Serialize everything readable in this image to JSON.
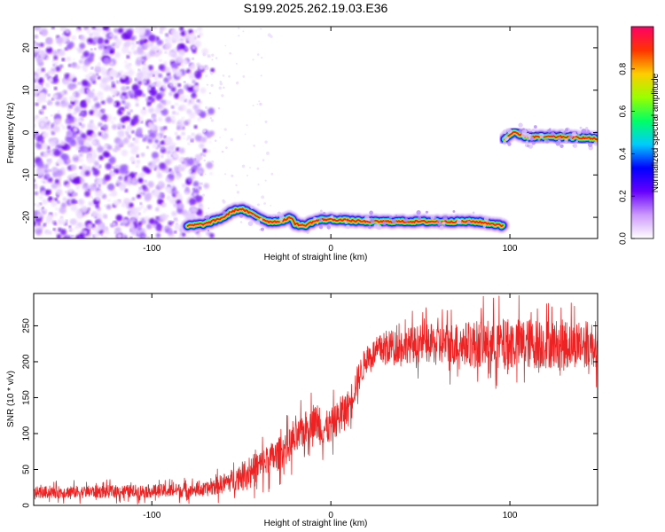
{
  "figure": {
    "title": "S199.2025.262.19.03.E36"
  },
  "chart_data": [
    {
      "type": "heatmap",
      "title": "",
      "xlabel": "Height of straight line (km)",
      "ylabel": "Frequency (Hz)",
      "xlim": [
        -166,
        149
      ],
      "ylim": [
        -25,
        25
      ],
      "x_ticks": [
        "-100",
        "0",
        "100"
      ],
      "x_tick_values": [
        -100,
        0,
        100
      ],
      "y_ticks": [
        "-20",
        "-10",
        "0",
        "10",
        "20"
      ],
      "y_tick_values": [
        -20,
        -10,
        0,
        10,
        20
      ],
      "colorbar": {
        "label": "Normalized spectral amplitude",
        "range": [
          0,
          1
        ],
        "ticks": [
          "0.0",
          "0.2",
          "0.4",
          "0.6",
          "0.8"
        ],
        "tick_values": [
          0,
          0.2,
          0.4,
          0.6,
          0.8
        ],
        "stops": [
          "#ffffff",
          "#cc99ff",
          "#6600ff",
          "#0000ff",
          "#00ccff",
          "#00ff66",
          "#99ff00",
          "#ffcc00",
          "#ff3300",
          "#ff0066"
        ]
      },
      "noise_region": {
        "x": [
          -166,
          -72
        ],
        "y": [
          -25,
          25
        ]
      },
      "tracks": [
        {
          "x": [
            -80,
            -70,
            -60,
            -55,
            -50,
            -45,
            -40,
            -35,
            -30,
            -25,
            -22,
            -20,
            -15,
            -10,
            -5,
            0,
            20,
            40,
            60,
            80,
            90,
            96
          ],
          "y": [
            -22,
            -21.5,
            -20,
            -18.5,
            -18,
            -19,
            -20,
            -21,
            -21,
            -20.5,
            -20,
            -21.5,
            -22,
            -21,
            -20.5,
            -20.5,
            -21,
            -21,
            -21,
            -21,
            -21.5,
            -22
          ]
        },
        {
          "x": [
            97,
            100,
            102,
            105,
            110,
            120,
            130,
            140,
            149
          ],
          "y": [
            -1.5,
            -0.5,
            0,
            -0.5,
            -1,
            -1,
            -1,
            -1.2,
            -1.5
          ]
        }
      ]
    },
    {
      "type": "line",
      "title": "",
      "xlabel": "Height of straight line (km)",
      "ylabel": "SNR (10 * v/v)",
      "xlim": [
        -166,
        149
      ],
      "ylim": [
        0,
        295
      ],
      "x_ticks": [
        "-100",
        "0",
        "100"
      ],
      "x_tick_values": [
        -100,
        0,
        100
      ],
      "y_ticks": [
        "0",
        "50",
        "100",
        "150",
        "200",
        "250"
      ],
      "y_tick_values": [
        0,
        50,
        100,
        150,
        200,
        250
      ],
      "color": "#ee2222",
      "trend": {
        "x": [
          -166,
          -100,
          -70,
          -55,
          -40,
          -30,
          -20,
          -10,
          -5,
          0,
          10,
          15,
          20,
          30,
          50,
          100,
          149
        ],
        "y": [
          18,
          20,
          22,
          35,
          55,
          70,
          90,
          120,
          105,
          110,
          140,
          175,
          205,
          220,
          225,
          225,
          225
        ]
      },
      "noise_amplitude": {
        "x": [
          -166,
          -70,
          -40,
          0,
          20,
          60,
          100,
          149
        ],
        "y": [
          10,
          12,
          28,
          30,
          25,
          35,
          45,
          40
        ]
      }
    }
  ]
}
